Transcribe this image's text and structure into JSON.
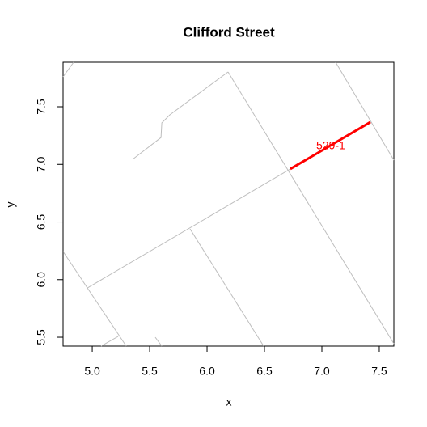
{
  "chart_data": {
    "type": "line",
    "title": "Clifford Street",
    "x_label": "x",
    "y_label": "y",
    "xlim": [
      4.746,
      7.627
    ],
    "ylim": [
      5.423,
      7.886
    ],
    "xticks": [
      {
        "value": 5,
        "label": "5.0"
      },
      5.5,
      {
        "value": 6,
        "label": "6.0"
      },
      6.5,
      {
        "value": 7,
        "label": "7.0"
      },
      7.5
    ],
    "yticks": [
      5.5,
      {
        "value": 6,
        "label": "6.0"
      },
      6.5,
      {
        "value": 7,
        "label": "7.0"
      },
      7.5
    ],
    "series": [
      {
        "color": "#bebebe",
        "x": [
          4.958,
          6.725
        ],
        "y": [
          5.928,
          6.96
        ]
      },
      {
        "color": "#bebebe",
        "x": [
          6.183,
          7.627
        ],
        "y": [
          7.802,
          5.444
        ]
      },
      {
        "color": "#bebebe",
        "x": [
          6.183,
          5.676,
          5.606,
          5.599,
          5.352
        ],
        "y": [
          7.802,
          7.43,
          7.36,
          7.233,
          7.044
        ]
      },
      {
        "color": "#bebebe",
        "x": [
          7.12,
          7.627
        ],
        "y": [
          7.886,
          7.037
        ]
      },
      {
        "color": "#bebebe",
        "x": [
          4.746,
          4.838
        ],
        "y": [
          7.76,
          7.886
        ]
      },
      {
        "color": "#bebebe",
        "x": [
          4.746,
          5.296
        ],
        "y": [
          6.244,
          5.423
        ]
      },
      {
        "color": "#bebebe",
        "x": [
          5.852,
          6.493
        ],
        "y": [
          6.44,
          5.423
        ]
      },
      {
        "color": "#bebebe",
        "x": [
          5.077,
          5.225
        ],
        "y": [
          5.423,
          5.507
        ]
      },
      {
        "color": "#bebebe",
        "x": [
          5.549,
          5.606
        ],
        "y": [
          5.5,
          5.423
        ]
      },
      {
        "color": "#ff0000",
        "x": [
          6.725,
          7.423
        ],
        "y": [
          6.96,
          7.367
        ]
      }
    ],
    "annotations": [
      {
        "text": "529-1",
        "x": 7.077,
        "y": 7.156,
        "color": "#ff0000"
      }
    ]
  }
}
